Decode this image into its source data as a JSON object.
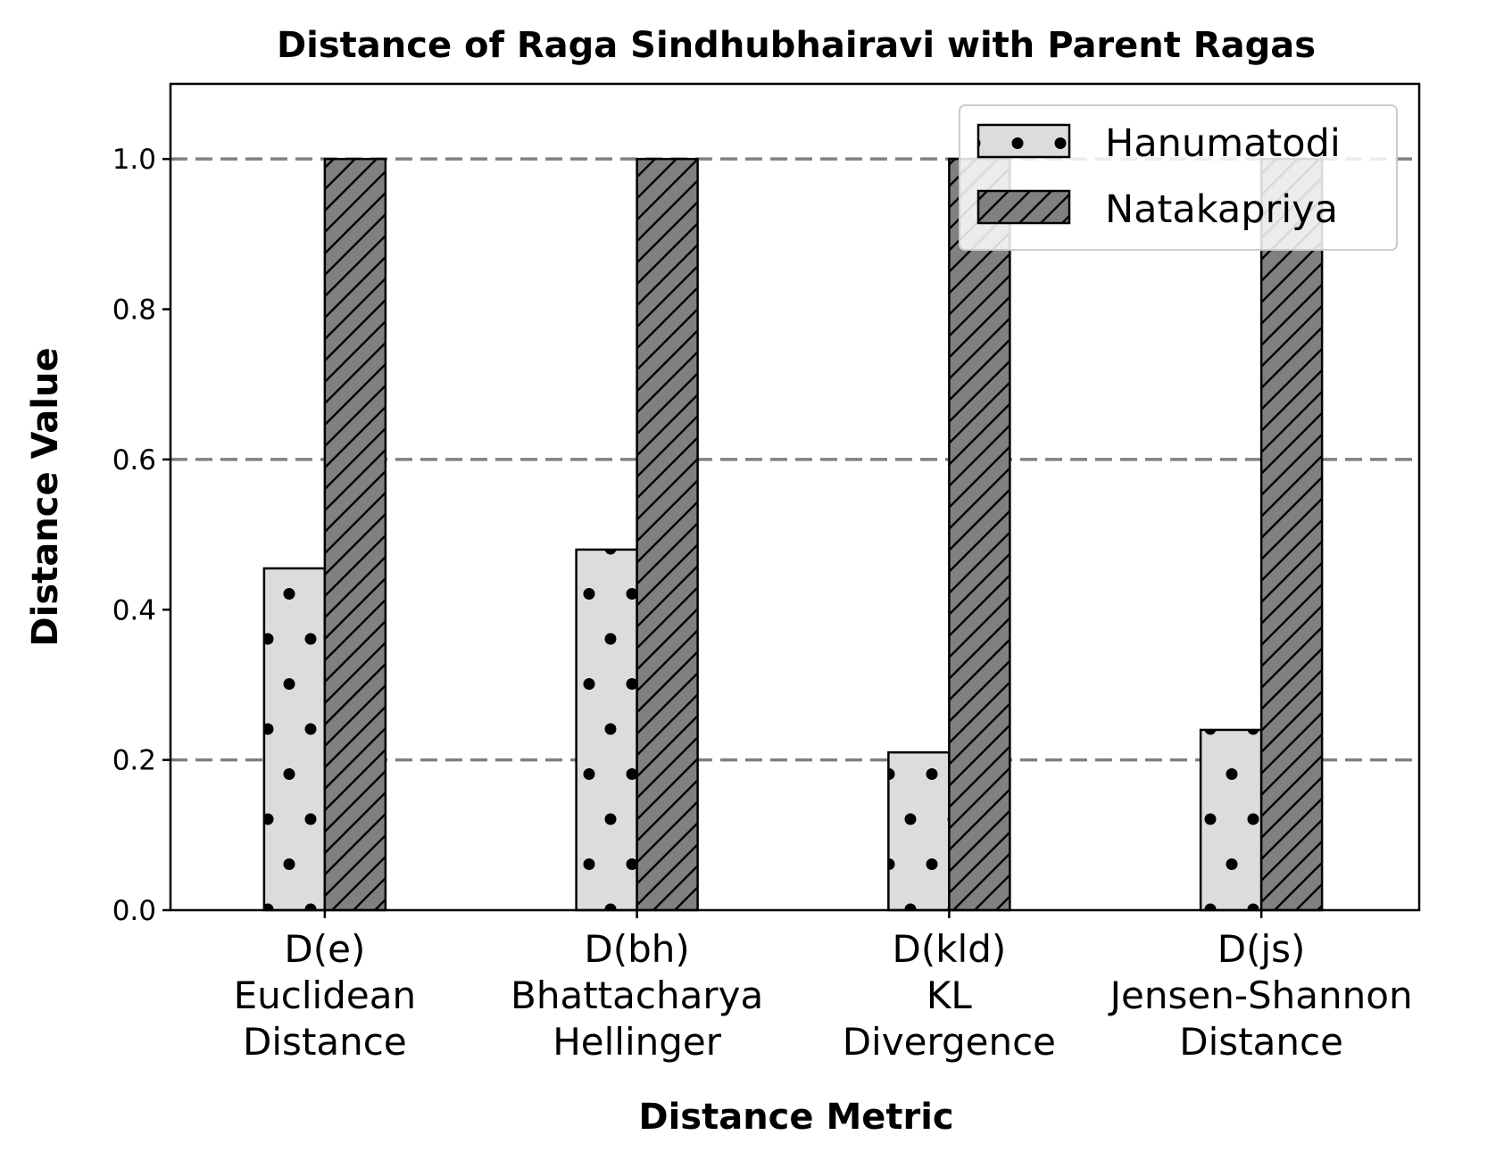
{
  "chart_data": {
    "type": "bar",
    "title": "Distance of Raga Sindhubhairavi with Parent Ragas",
    "xlabel": "Distance Metric",
    "ylabel": "Distance Value",
    "categories": [
      [
        "D(e)",
        "Euclidean",
        "Distance"
      ],
      [
        "D(bh)",
        "Bhattacharya",
        "Hellinger"
      ],
      [
        "D(kld)",
        "KL",
        "Divergence"
      ],
      [
        "D(js)",
        "Jensen-Shannon",
        "Distance"
      ]
    ],
    "series": [
      {
        "name": "Hanumatodi",
        "values": [
          0.455,
          0.48,
          0.21,
          0.24
        ],
        "color": "#dcdcdc",
        "hatch": "dots"
      },
      {
        "name": "Natakapriya",
        "values": [
          1.0,
          1.0,
          1.0,
          1.0
        ],
        "color": "#808080",
        "hatch": "diagonal"
      }
    ],
    "ylim": [
      0,
      1.1
    ],
    "yticks": [
      "0.0",
      "0.2",
      "0.4",
      "0.6",
      "0.8",
      "1.0"
    ],
    "grid": {
      "on": true,
      "axis": "y",
      "values": [
        0.2,
        0.6,
        1.0
      ],
      "style": "dashed",
      "color": "#808080"
    },
    "legend": {
      "position": "top-right"
    }
  }
}
